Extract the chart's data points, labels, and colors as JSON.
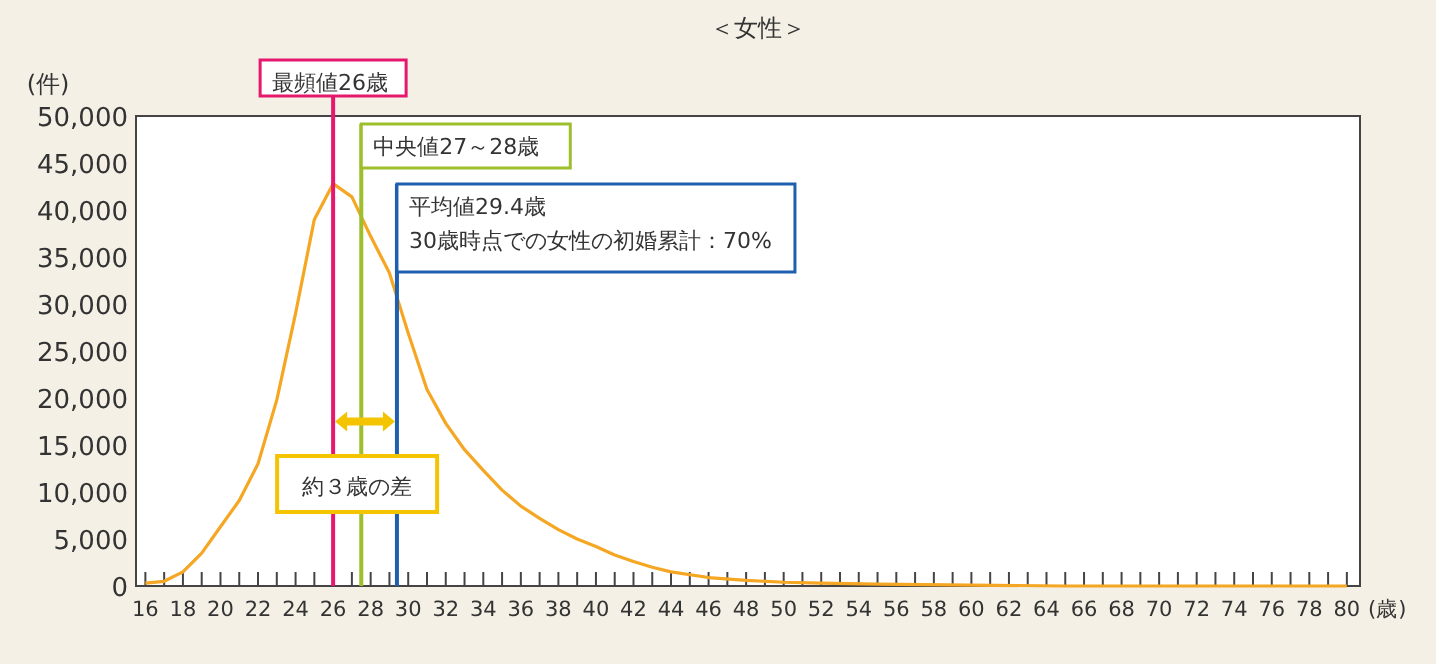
{
  "chart_data": {
    "type": "line",
    "title": "＜女性＞",
    "xlabel": "(歳)",
    "ylabel": "(件)",
    "x": [
      16,
      17,
      18,
      19,
      20,
      21,
      22,
      23,
      24,
      25,
      26,
      27,
      28,
      29,
      30,
      31,
      32,
      33,
      34,
      35,
      36,
      37,
      38,
      39,
      40,
      41,
      42,
      43,
      44,
      46,
      48,
      50,
      52,
      55,
      60,
      65,
      70,
      75,
      80
    ],
    "series": [
      {
        "color": "#f5a623",
        "values": [
          300,
          500,
          1500,
          3500,
          6300,
          9100,
          13000,
          19800,
          29000,
          39000,
          42800,
          41400,
          37200,
          33300,
          26900,
          20900,
          17300,
          14500,
          12300,
          10200,
          8500,
          7200,
          6000,
          5000,
          4200,
          3300,
          2600,
          2000,
          1500,
          900,
          600,
          400,
          300,
          200,
          100,
          0,
          0,
          0,
          0
        ]
      }
    ],
    "xlim": [
      15.5,
      80.7
    ],
    "ylim": [
      0,
      50000
    ],
    "xticks": [
      16,
      {
        "value": 17,
        "label": null
      },
      18,
      {
        "value": 19,
        "label": null
      },
      20,
      {
        "value": 21,
        "label": null
      },
      22,
      {
        "value": 23,
        "label": null
      },
      24,
      {
        "value": 25,
        "label": null
      },
      26,
      {
        "value": 27,
        "label": null
      },
      28,
      {
        "value": 29,
        "label": null
      },
      30,
      {
        "value": 31,
        "label": null
      },
      32,
      {
        "value": 33,
        "label": null
      },
      34,
      {
        "value": 35,
        "label": null
      },
      36,
      {
        "value": 37,
        "label": null
      },
      38,
      {
        "value": 39,
        "label": null
      },
      40,
      {
        "value": 41,
        "label": null
      },
      42,
      {
        "value": 43,
        "label": null
      },
      44,
      {
        "value": 45,
        "label": null
      },
      46,
      {
        "value": 47,
        "label": null
      },
      48,
      {
        "value": 49,
        "label": null
      },
      50,
      {
        "value": 51,
        "label": null
      },
      52,
      {
        "value": 53,
        "label": null
      },
      54,
      {
        "value": 55,
        "label": null
      },
      56,
      {
        "value": 57,
        "label": null
      },
      58,
      {
        "value": 59,
        "label": null
      },
      60,
      {
        "value": 61,
        "label": null
      },
      62,
      {
        "value": 63,
        "label": null
      },
      64,
      {
        "value": 65,
        "label": null
      },
      66,
      {
        "value": 67,
        "label": null
      },
      68,
      {
        "value": 69,
        "label": null
      },
      70,
      {
        "value": 71,
        "label": null
      },
      72,
      {
        "value": 73,
        "label": null
      },
      74,
      {
        "value": 75,
        "label": null
      },
      76,
      {
        "value": 77,
        "label": null
      },
      78,
      {
        "value": 79,
        "label": null
      },
      80
    ],
    "yticks": [
      0,
      {
        "value": 5000,
        "label": "5,000"
      },
      {
        "value": 10000,
        "label": "10,000"
      },
      {
        "value": 15000,
        "label": "15,000"
      },
      {
        "value": 20000,
        "label": "20,000"
      },
      {
        "value": 25000,
        "label": "25,000"
      },
      {
        "value": 30000,
        "label": "30,000"
      },
      {
        "value": 35000,
        "label": "35,000"
      },
      {
        "value": 40000,
        "label": "40,000"
      },
      {
        "value": 45000,
        "label": "45,000"
      },
      {
        "value": 50000,
        "label": "50,000"
      }
    ],
    "ref_lines": [
      {
        "axis": "x",
        "value": 26,
        "label": "最頻値26歳",
        "color": "#e5186e"
      },
      {
        "axis": "x",
        "value": 27.5,
        "label": "中央値27～28歳",
        "color": "#9cbf2b"
      },
      {
        "axis": "x",
        "value": 29.4,
        "label": "平均値29.4歳\n30歳時点での女性の初婚累計：70%",
        "color": "#1f5fb0"
      }
    ],
    "annotations": [
      "約３歳の差"
    ],
    "grid": false
  }
}
